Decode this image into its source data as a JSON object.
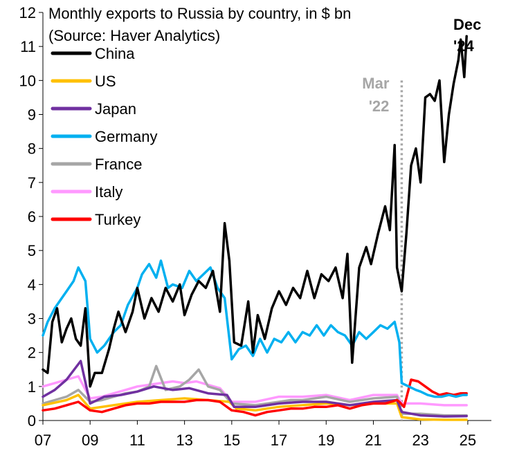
{
  "chart_data": {
    "type": "line",
    "title": "Monthly exports to Russia by country, in $ bn",
    "subtitle": "(Source: Haver Analytics)",
    "xlim": [
      2007,
      2026
    ],
    "ylim": [
      0,
      12
    ],
    "x_ticks": [
      7,
      9,
      11,
      13,
      15,
      17,
      19,
      21,
      23,
      25
    ],
    "x_tick_labels": [
      "07",
      "09",
      "11",
      "13",
      "15",
      "17",
      "19",
      "21",
      "23",
      "25"
    ],
    "y_ticks": [
      0,
      1,
      2,
      3,
      4,
      5,
      6,
      7,
      8,
      9,
      10,
      11,
      12
    ],
    "grid": false,
    "legend_position": "top-left",
    "annotations": [
      {
        "text_lines": [
          "Mar",
          "'22"
        ],
        "x": 2022.2,
        "color": "#a6a6a6",
        "style": "dotted-vertical-line"
      },
      {
        "text_lines": [
          "Dec",
          "'24"
        ],
        "x": 2024.95,
        "color": "#000000",
        "style": "label"
      }
    ],
    "series": [
      {
        "name": "China",
        "color": "#000000",
        "points": [
          [
            2007.0,
            1.5
          ],
          [
            2007.2,
            1.4
          ],
          [
            2007.4,
            2.9
          ],
          [
            2007.6,
            3.3
          ],
          [
            2007.8,
            2.3
          ],
          [
            2008.0,
            2.7
          ],
          [
            2008.2,
            3.0
          ],
          [
            2008.4,
            2.4
          ],
          [
            2008.6,
            2.2
          ],
          [
            2008.8,
            3.3
          ],
          [
            2009.0,
            1.0
          ],
          [
            2009.2,
            1.4
          ],
          [
            2009.5,
            1.4
          ],
          [
            2009.8,
            2.1
          ],
          [
            2010.0,
            2.7
          ],
          [
            2010.2,
            3.2
          ],
          [
            2010.5,
            2.6
          ],
          [
            2010.8,
            3.2
          ],
          [
            2011.0,
            3.9
          ],
          [
            2011.3,
            3.0
          ],
          [
            2011.6,
            3.6
          ],
          [
            2011.9,
            3.2
          ],
          [
            2012.2,
            3.9
          ],
          [
            2012.5,
            3.5
          ],
          [
            2012.8,
            4.0
          ],
          [
            2013.0,
            3.1
          ],
          [
            2013.3,
            3.7
          ],
          [
            2013.6,
            4.1
          ],
          [
            2013.9,
            3.9
          ],
          [
            2014.2,
            4.4
          ],
          [
            2014.5,
            3.2
          ],
          [
            2014.7,
            5.8
          ],
          [
            2014.9,
            4.7
          ],
          [
            2015.1,
            2.3
          ],
          [
            2015.4,
            2.2
          ],
          [
            2015.7,
            3.5
          ],
          [
            2015.9,
            2.0
          ],
          [
            2016.1,
            3.1
          ],
          [
            2016.4,
            2.4
          ],
          [
            2016.7,
            3.3
          ],
          [
            2017.0,
            3.8
          ],
          [
            2017.3,
            3.4
          ],
          [
            2017.6,
            3.9
          ],
          [
            2017.9,
            3.6
          ],
          [
            2018.2,
            4.4
          ],
          [
            2018.5,
            3.6
          ],
          [
            2018.8,
            4.3
          ],
          [
            2019.1,
            4.1
          ],
          [
            2019.4,
            4.5
          ],
          [
            2019.7,
            3.6
          ],
          [
            2019.9,
            4.9
          ],
          [
            2020.1,
            1.7
          ],
          [
            2020.4,
            4.5
          ],
          [
            2020.7,
            5.1
          ],
          [
            2020.9,
            4.6
          ],
          [
            2021.2,
            5.5
          ],
          [
            2021.5,
            6.3
          ],
          [
            2021.7,
            5.6
          ],
          [
            2021.9,
            8.1
          ],
          [
            2022.0,
            4.5
          ],
          [
            2022.2,
            3.8
          ],
          [
            2022.4,
            5.5
          ],
          [
            2022.6,
            7.5
          ],
          [
            2022.8,
            8.0
          ],
          [
            2023.0,
            7.0
          ],
          [
            2023.2,
            9.5
          ],
          [
            2023.4,
            9.6
          ],
          [
            2023.6,
            9.4
          ],
          [
            2023.8,
            10.0
          ],
          [
            2024.0,
            7.6
          ],
          [
            2024.2,
            9.0
          ],
          [
            2024.4,
            9.9
          ],
          [
            2024.6,
            10.6
          ],
          [
            2024.7,
            11.2
          ],
          [
            2024.85,
            10.1
          ],
          [
            2024.95,
            11.3
          ]
        ]
      },
      {
        "name": "US",
        "color": "#ffc000",
        "points": [
          [
            2007.0,
            0.45
          ],
          [
            2008.0,
            0.6
          ],
          [
            2008.5,
            0.75
          ],
          [
            2009.0,
            0.35
          ],
          [
            2010.0,
            0.45
          ],
          [
            2011.0,
            0.55
          ],
          [
            2012.0,
            0.6
          ],
          [
            2013.0,
            0.65
          ],
          [
            2014.0,
            0.6
          ],
          [
            2014.9,
            0.55
          ],
          [
            2015.2,
            0.35
          ],
          [
            2016.0,
            0.3
          ],
          [
            2017.0,
            0.4
          ],
          [
            2018.0,
            0.45
          ],
          [
            2019.0,
            0.5
          ],
          [
            2020.0,
            0.45
          ],
          [
            2021.0,
            0.5
          ],
          [
            2022.0,
            0.5
          ],
          [
            2022.2,
            0.1
          ],
          [
            2023.0,
            0.03
          ],
          [
            2024.0,
            0.02
          ],
          [
            2024.95,
            0.02
          ]
        ]
      },
      {
        "name": "Japan",
        "color": "#7030a0",
        "points": [
          [
            2007.0,
            0.7
          ],
          [
            2007.5,
            0.9
          ],
          [
            2008.0,
            1.2
          ],
          [
            2008.6,
            1.75
          ],
          [
            2009.0,
            0.5
          ],
          [
            2009.6,
            0.7
          ],
          [
            2010.3,
            0.75
          ],
          [
            2011.0,
            0.85
          ],
          [
            2011.7,
            1.0
          ],
          [
            2012.5,
            0.9
          ],
          [
            2013.2,
            0.95
          ],
          [
            2014.0,
            0.8
          ],
          [
            2014.8,
            0.75
          ],
          [
            2015.1,
            0.4
          ],
          [
            2016.0,
            0.4
          ],
          [
            2017.0,
            0.5
          ],
          [
            2018.0,
            0.55
          ],
          [
            2019.0,
            0.55
          ],
          [
            2020.0,
            0.45
          ],
          [
            2021.0,
            0.55
          ],
          [
            2022.0,
            0.6
          ],
          [
            2022.2,
            0.25
          ],
          [
            2023.0,
            0.15
          ],
          [
            2024.0,
            0.12
          ],
          [
            2024.95,
            0.13
          ]
        ]
      },
      {
        "name": "Germany",
        "color": "#00b0f0",
        "points": [
          [
            2007.0,
            2.5
          ],
          [
            2007.2,
            2.9
          ],
          [
            2007.5,
            3.3
          ],
          [
            2007.8,
            3.6
          ],
          [
            2008.0,
            3.8
          ],
          [
            2008.3,
            4.1
          ],
          [
            2008.5,
            4.5
          ],
          [
            2008.8,
            4.1
          ],
          [
            2009.0,
            2.4
          ],
          [
            2009.3,
            2.0
          ],
          [
            2009.6,
            2.2
          ],
          [
            2010.0,
            2.6
          ],
          [
            2010.3,
            2.8
          ],
          [
            2010.6,
            3.4
          ],
          [
            2011.0,
            3.9
          ],
          [
            2011.2,
            4.3
          ],
          [
            2011.5,
            4.6
          ],
          [
            2011.8,
            4.2
          ],
          [
            2012.0,
            4.7
          ],
          [
            2012.3,
            3.9
          ],
          [
            2012.5,
            4.0
          ],
          [
            2012.9,
            3.9
          ],
          [
            2013.2,
            4.4
          ],
          [
            2013.5,
            4.1
          ],
          [
            2013.8,
            4.3
          ],
          [
            2014.1,
            4.5
          ],
          [
            2014.4,
            3.9
          ],
          [
            2014.7,
            3.6
          ],
          [
            2015.0,
            1.8
          ],
          [
            2015.3,
            2.1
          ],
          [
            2015.6,
            2.2
          ],
          [
            2015.9,
            1.9
          ],
          [
            2016.2,
            2.4
          ],
          [
            2016.5,
            2.0
          ],
          [
            2016.8,
            2.4
          ],
          [
            2017.1,
            2.3
          ],
          [
            2017.4,
            2.6
          ],
          [
            2017.7,
            2.3
          ],
          [
            2018.0,
            2.6
          ],
          [
            2018.3,
            2.5
          ],
          [
            2018.6,
            2.8
          ],
          [
            2018.9,
            2.5
          ],
          [
            2019.2,
            2.8
          ],
          [
            2019.5,
            2.6
          ],
          [
            2019.8,
            2.5
          ],
          [
            2020.1,
            2.2
          ],
          [
            2020.4,
            2.6
          ],
          [
            2020.7,
            2.4
          ],
          [
            2021.0,
            2.6
          ],
          [
            2021.3,
            2.8
          ],
          [
            2021.6,
            2.7
          ],
          [
            2021.9,
            2.9
          ],
          [
            2022.1,
            2.3
          ],
          [
            2022.2,
            1.1
          ],
          [
            2022.5,
            1.0
          ],
          [
            2022.8,
            0.9
          ],
          [
            2023.0,
            0.85
          ],
          [
            2023.3,
            0.75
          ],
          [
            2023.6,
            0.7
          ],
          [
            2023.9,
            0.7
          ],
          [
            2024.2,
            0.75
          ],
          [
            2024.5,
            0.7
          ],
          [
            2024.8,
            0.75
          ],
          [
            2024.95,
            0.75
          ]
        ]
      },
      {
        "name": "France",
        "color": "#a6a6a6",
        "points": [
          [
            2007.0,
            0.5
          ],
          [
            2007.5,
            0.6
          ],
          [
            2008.0,
            0.7
          ],
          [
            2008.5,
            0.9
          ],
          [
            2009.0,
            0.55
          ],
          [
            2009.5,
            0.6
          ],
          [
            2010.0,
            0.7
          ],
          [
            2010.5,
            0.8
          ],
          [
            2011.0,
            0.85
          ],
          [
            2011.5,
            1.0
          ],
          [
            2011.8,
            1.6
          ],
          [
            2012.2,
            0.9
          ],
          [
            2012.8,
            1.0
          ],
          [
            2013.2,
            1.2
          ],
          [
            2013.6,
            1.5
          ],
          [
            2014.0,
            1.0
          ],
          [
            2014.5,
            0.9
          ],
          [
            2015.0,
            0.5
          ],
          [
            2016.0,
            0.45
          ],
          [
            2017.0,
            0.55
          ],
          [
            2017.5,
            0.6
          ],
          [
            2018.0,
            0.6
          ],
          [
            2019.0,
            0.7
          ],
          [
            2020.0,
            0.55
          ],
          [
            2021.0,
            0.65
          ],
          [
            2022.0,
            0.7
          ],
          [
            2022.2,
            0.2
          ],
          [
            2023.0,
            0.2
          ],
          [
            2024.0,
            0.15
          ],
          [
            2024.95,
            0.15
          ]
        ]
      },
      {
        "name": "Italy",
        "color": "#ff99ff",
        "points": [
          [
            2007.0,
            1.0
          ],
          [
            2007.5,
            1.1
          ],
          [
            2008.0,
            1.2
          ],
          [
            2008.5,
            1.3
          ],
          [
            2009.0,
            0.65
          ],
          [
            2009.5,
            0.7
          ],
          [
            2010.0,
            0.8
          ],
          [
            2010.5,
            0.9
          ],
          [
            2011.0,
            1.0
          ],
          [
            2011.5,
            1.05
          ],
          [
            2012.0,
            1.1
          ],
          [
            2012.5,
            1.15
          ],
          [
            2013.0,
            1.1
          ],
          [
            2013.5,
            1.15
          ],
          [
            2014.0,
            1.05
          ],
          [
            2014.5,
            0.95
          ],
          [
            2015.0,
            0.55
          ],
          [
            2016.0,
            0.55
          ],
          [
            2017.0,
            0.7
          ],
          [
            2018.0,
            0.7
          ],
          [
            2019.0,
            0.75
          ],
          [
            2020.0,
            0.6
          ],
          [
            2021.0,
            0.75
          ],
          [
            2022.0,
            0.75
          ],
          [
            2022.2,
            0.5
          ],
          [
            2023.0,
            0.5
          ],
          [
            2024.0,
            0.45
          ],
          [
            2024.95,
            0.45
          ]
        ]
      },
      {
        "name": "Turkey",
        "color": "#ff0000",
        "points": [
          [
            2007.0,
            0.3
          ],
          [
            2007.5,
            0.35
          ],
          [
            2008.0,
            0.45
          ],
          [
            2008.5,
            0.55
          ],
          [
            2009.0,
            0.3
          ],
          [
            2009.5,
            0.25
          ],
          [
            2010.0,
            0.35
          ],
          [
            2010.5,
            0.45
          ],
          [
            2011.0,
            0.5
          ],
          [
            2011.5,
            0.5
          ],
          [
            2012.0,
            0.55
          ],
          [
            2012.5,
            0.55
          ],
          [
            2013.0,
            0.55
          ],
          [
            2013.5,
            0.6
          ],
          [
            2014.0,
            0.6
          ],
          [
            2014.5,
            0.55
          ],
          [
            2015.0,
            0.3
          ],
          [
            2015.5,
            0.25
          ],
          [
            2016.0,
            0.15
          ],
          [
            2016.5,
            0.25
          ],
          [
            2017.0,
            0.3
          ],
          [
            2017.5,
            0.35
          ],
          [
            2018.0,
            0.35
          ],
          [
            2018.5,
            0.4
          ],
          [
            2019.0,
            0.4
          ],
          [
            2019.5,
            0.45
          ],
          [
            2020.0,
            0.35
          ],
          [
            2020.5,
            0.45
          ],
          [
            2021.0,
            0.5
          ],
          [
            2021.5,
            0.5
          ],
          [
            2022.0,
            0.6
          ],
          [
            2022.1,
            0.55
          ],
          [
            2022.3,
            0.4
          ],
          [
            2022.6,
            1.2
          ],
          [
            2022.9,
            1.15
          ],
          [
            2023.2,
            1.0
          ],
          [
            2023.5,
            0.85
          ],
          [
            2023.8,
            0.75
          ],
          [
            2024.1,
            0.8
          ],
          [
            2024.4,
            0.75
          ],
          [
            2024.7,
            0.8
          ],
          [
            2024.95,
            0.8
          ]
        ]
      }
    ]
  }
}
